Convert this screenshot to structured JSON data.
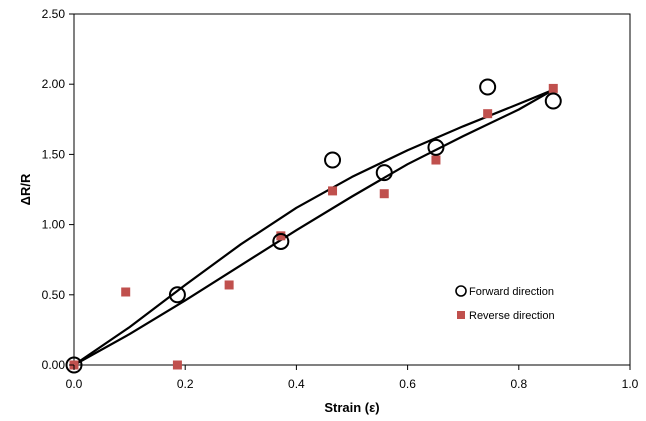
{
  "chart_data": {
    "type": "scatter",
    "title": "",
    "xlabel": "Strain (ε)",
    "ylabel": "ΔR/R",
    "xlim": [
      0,
      1.0
    ],
    "ylim": [
      0,
      2.5
    ],
    "x_ticks": [
      "0.0",
      "0.2",
      "0.4",
      "0.6",
      "0.8",
      "1.0"
    ],
    "y_ticks": [
      "0.00",
      "0.50",
      "1.00",
      "1.50",
      "2.00",
      "2.50"
    ],
    "grid": false,
    "legend_position": "lower-right",
    "series": [
      {
        "name": "Forward direction",
        "marker": "open-circle",
        "color": "#000000",
        "x": [
          0.0,
          0.186,
          0.372,
          0.465,
          0.558,
          0.651,
          0.744,
          0.862
        ],
        "y": [
          0.0,
          0.5,
          0.88,
          1.46,
          1.37,
          1.55,
          1.98,
          1.88
        ]
      },
      {
        "name": "Reverse direction",
        "marker": "filled-square",
        "color": "#c0504d",
        "x": [
          0.0,
          0.093,
          0.186,
          0.279,
          0.372,
          0.465,
          0.558,
          0.651,
          0.744,
          0.862
        ],
        "y": [
          0.0,
          0.52,
          0.0,
          0.57,
          0.92,
          1.24,
          1.22,
          1.46,
          1.79,
          1.97
        ]
      }
    ],
    "fit_curves": [
      {
        "name": "upper-fit",
        "color": "#000000",
        "x": [
          0.0,
          0.1,
          0.2,
          0.3,
          0.4,
          0.5,
          0.6,
          0.7,
          0.8,
          0.862
        ],
        "y": [
          0.0,
          0.27,
          0.57,
          0.86,
          1.12,
          1.34,
          1.53,
          1.7,
          1.86,
          1.96
        ]
      },
      {
        "name": "lower-fit",
        "color": "#000000",
        "x": [
          0.0,
          0.1,
          0.2,
          0.3,
          0.4,
          0.5,
          0.6,
          0.7,
          0.8,
          0.862
        ],
        "y": [
          0.0,
          0.22,
          0.46,
          0.71,
          0.96,
          1.2,
          1.43,
          1.63,
          1.82,
          1.96
        ]
      }
    ]
  }
}
